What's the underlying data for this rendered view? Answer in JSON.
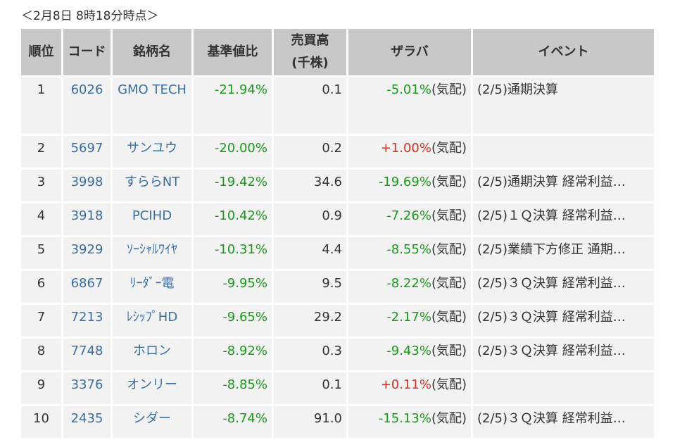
{
  "timestamp": "＜2月8日 8時18分時点＞",
  "colors": {
    "header_bg": "#c8c8c8",
    "cell_bg": "#f2f2f2",
    "link": "#3a6ea5",
    "negative": "#1a9a1a",
    "positive": "#d93025"
  },
  "headers": {
    "rank": "順位",
    "code": "コード",
    "name": "銘柄名",
    "change": "基準値比",
    "volume_line1": "売買高",
    "volume_line2": "(千株)",
    "zaraba": "ザラバ",
    "event": "イベント"
  },
  "rows": [
    {
      "rank": "1",
      "code": "6026",
      "name": "GMO TECH",
      "change": "-21.94%",
      "volume": "0.1",
      "zaraba": "-5.01%",
      "zaraba_sign": "neg",
      "zaraba_suffix": "(気配)",
      "event": "(2/5)通期決算"
    },
    {
      "rank": "2",
      "code": "5697",
      "name": "サンユウ",
      "change": "-20.00%",
      "volume": "0.2",
      "zaraba": "+1.00%",
      "zaraba_sign": "pos",
      "zaraba_suffix": "(気配)",
      "event": ""
    },
    {
      "rank": "3",
      "code": "3998",
      "name": "すららNT",
      "change": "-19.42%",
      "volume": "34.6",
      "zaraba": "-19.69%",
      "zaraba_sign": "neg",
      "zaraba_suffix": "(気配)",
      "event": "(2/5)通期決算 経常利益…"
    },
    {
      "rank": "4",
      "code": "3918",
      "name": "PCIHD",
      "change": "-10.42%",
      "volume": "0.9",
      "zaraba": "-7.26%",
      "zaraba_sign": "neg",
      "zaraba_suffix": "(気配)",
      "event": "(2/5)１Ｑ決算 経常利益…"
    },
    {
      "rank": "5",
      "code": "3929",
      "name": "ｿｰｼｬﾙﾜｲﾔ",
      "change": "-10.31%",
      "volume": "4.4",
      "zaraba": "-8.55%",
      "zaraba_sign": "neg",
      "zaraba_suffix": "(気配)",
      "event": "(2/5)業績下方修正 通期…"
    },
    {
      "rank": "6",
      "code": "6867",
      "name": "ﾘｰﾀﾞｰ電",
      "change": "-9.95%",
      "volume": "9.5",
      "zaraba": "-8.22%",
      "zaraba_sign": "neg",
      "zaraba_suffix": "(気配)",
      "event": "(2/5)３Ｑ決算 経常利益…"
    },
    {
      "rank": "7",
      "code": "7213",
      "name": "ﾚｼｯﾌﾟHD",
      "change": "-9.65%",
      "volume": "29.2",
      "zaraba": "-2.17%",
      "zaraba_sign": "neg",
      "zaraba_suffix": "(気配)",
      "event": "(2/5)３Ｑ決算 経常利益…"
    },
    {
      "rank": "8",
      "code": "7748",
      "name": "ホロン",
      "change": "-8.92%",
      "volume": "0.3",
      "zaraba": "-9.43%",
      "zaraba_sign": "neg",
      "zaraba_suffix": "(気配)",
      "event": "(2/5)３Ｑ決算 経常利益…"
    },
    {
      "rank": "9",
      "code": "3376",
      "name": "オンリー",
      "change": "-8.85%",
      "volume": "0.1",
      "zaraba": "+0.11%",
      "zaraba_sign": "pos",
      "zaraba_suffix": "(気配)",
      "event": ""
    },
    {
      "rank": "10",
      "code": "2435",
      "name": "シダー",
      "change": "-8.74%",
      "volume": "91.0",
      "zaraba": "-15.13%",
      "zaraba_sign": "neg",
      "zaraba_suffix": "(気配)",
      "event": "(2/5)３Ｑ決算 経常利益…"
    }
  ]
}
